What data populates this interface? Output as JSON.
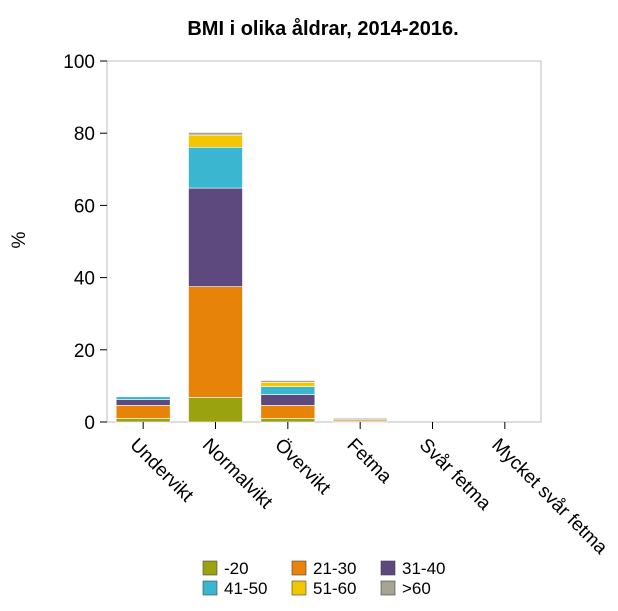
{
  "chart_data": {
    "type": "bar",
    "stacked": true,
    "title": "BMI i olika åldrar, 2014-2016.",
    "xlabel": "",
    "ylabel": "%",
    "ylim": [
      0,
      100
    ],
    "yticks": [
      0,
      20,
      40,
      60,
      80,
      100
    ],
    "grid": false,
    "legend_position": "bottom",
    "categories": [
      "Undervikt",
      "Normalvikt",
      "Övervikt",
      "Fetma",
      "Svår fetma",
      "Mycket svår fetma"
    ],
    "series": [
      {
        "name": "-20",
        "color": "#9aa30f",
        "values": [
          1.0,
          6.8,
          1.0,
          0.3,
          0,
          0
        ]
      },
      {
        "name": "21-30",
        "color": "#e8830a",
        "values": [
          3.6,
          30.7,
          3.6,
          0.4,
          0,
          0
        ]
      },
      {
        "name": "31-40",
        "color": "#5e497f",
        "values": [
          1.6,
          27.3,
          3.0,
          0.3,
          0,
          0
        ]
      },
      {
        "name": "41-50",
        "color": "#3bb6d1",
        "values": [
          0.8,
          11.3,
          2.2,
          0.2,
          0,
          0
        ]
      },
      {
        "name": "51-60",
        "color": "#f2c600",
        "values": [
          0.2,
          3.4,
          1.2,
          0.1,
          0,
          0
        ]
      },
      {
        "name": ">60",
        "color": "#a8a494",
        "values": [
          0.1,
          0.7,
          0.5,
          0.1,
          0,
          0
        ]
      }
    ]
  }
}
